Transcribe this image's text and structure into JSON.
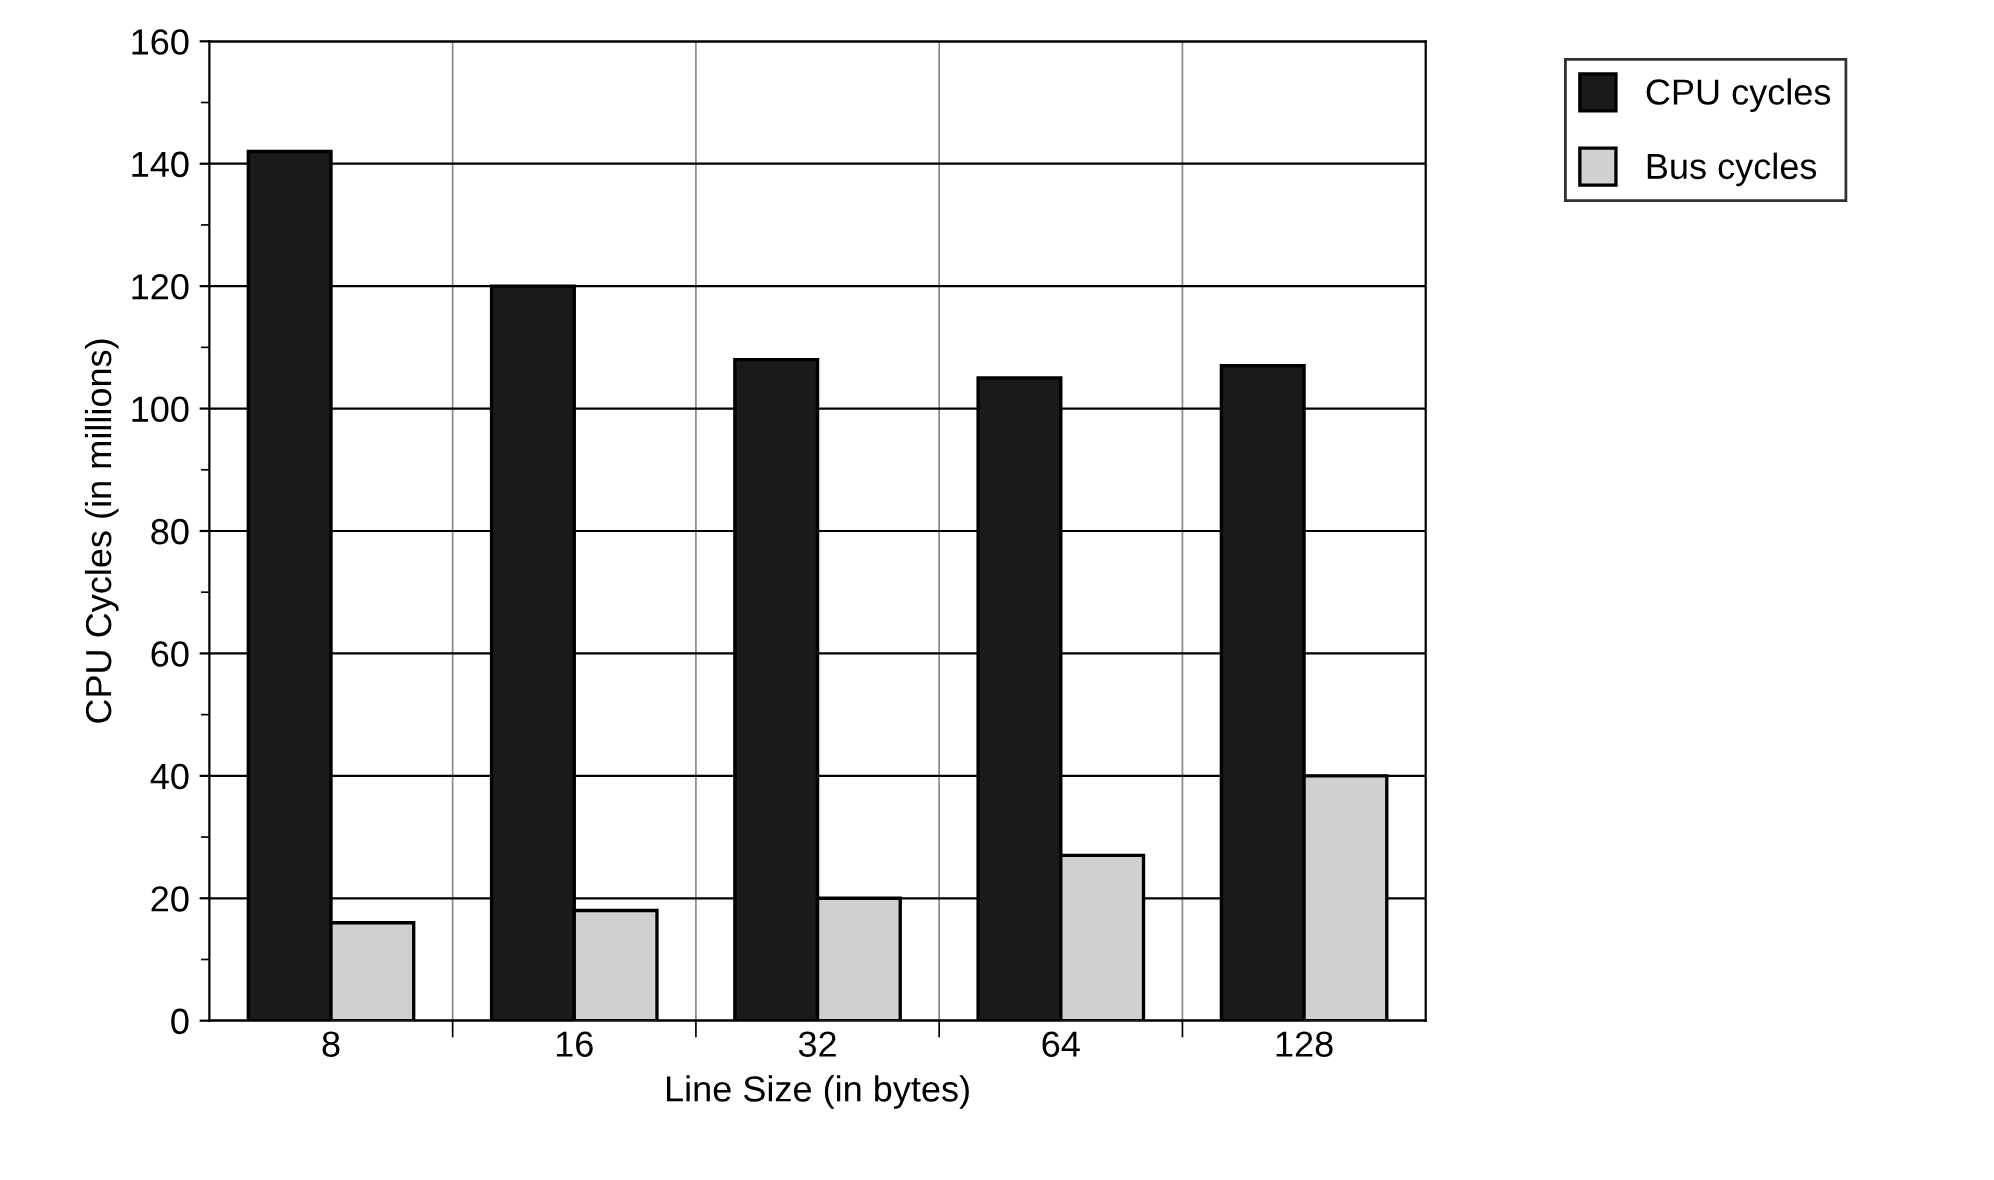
{
  "chart_data": {
    "type": "bar",
    "xlabel": "Line Size (in bytes)",
    "ylabel": "CPU Cycles (in millions)",
    "categories": [
      "8",
      "16",
      "32",
      "64",
      "128"
    ],
    "series": [
      {
        "name": "CPU cycles",
        "color": "#1a1a1a",
        "values": [
          142,
          120,
          108,
          105,
          107
        ]
      },
      {
        "name": "Bus cycles",
        "color": "#d0d0d0",
        "values": [
          16,
          18,
          20,
          27,
          40
        ]
      }
    ],
    "ylim": [
      0,
      160
    ],
    "yticks": [
      0,
      20,
      40,
      60,
      80,
      100,
      120,
      140,
      160
    ],
    "grid": true,
    "legend": "top right"
  }
}
